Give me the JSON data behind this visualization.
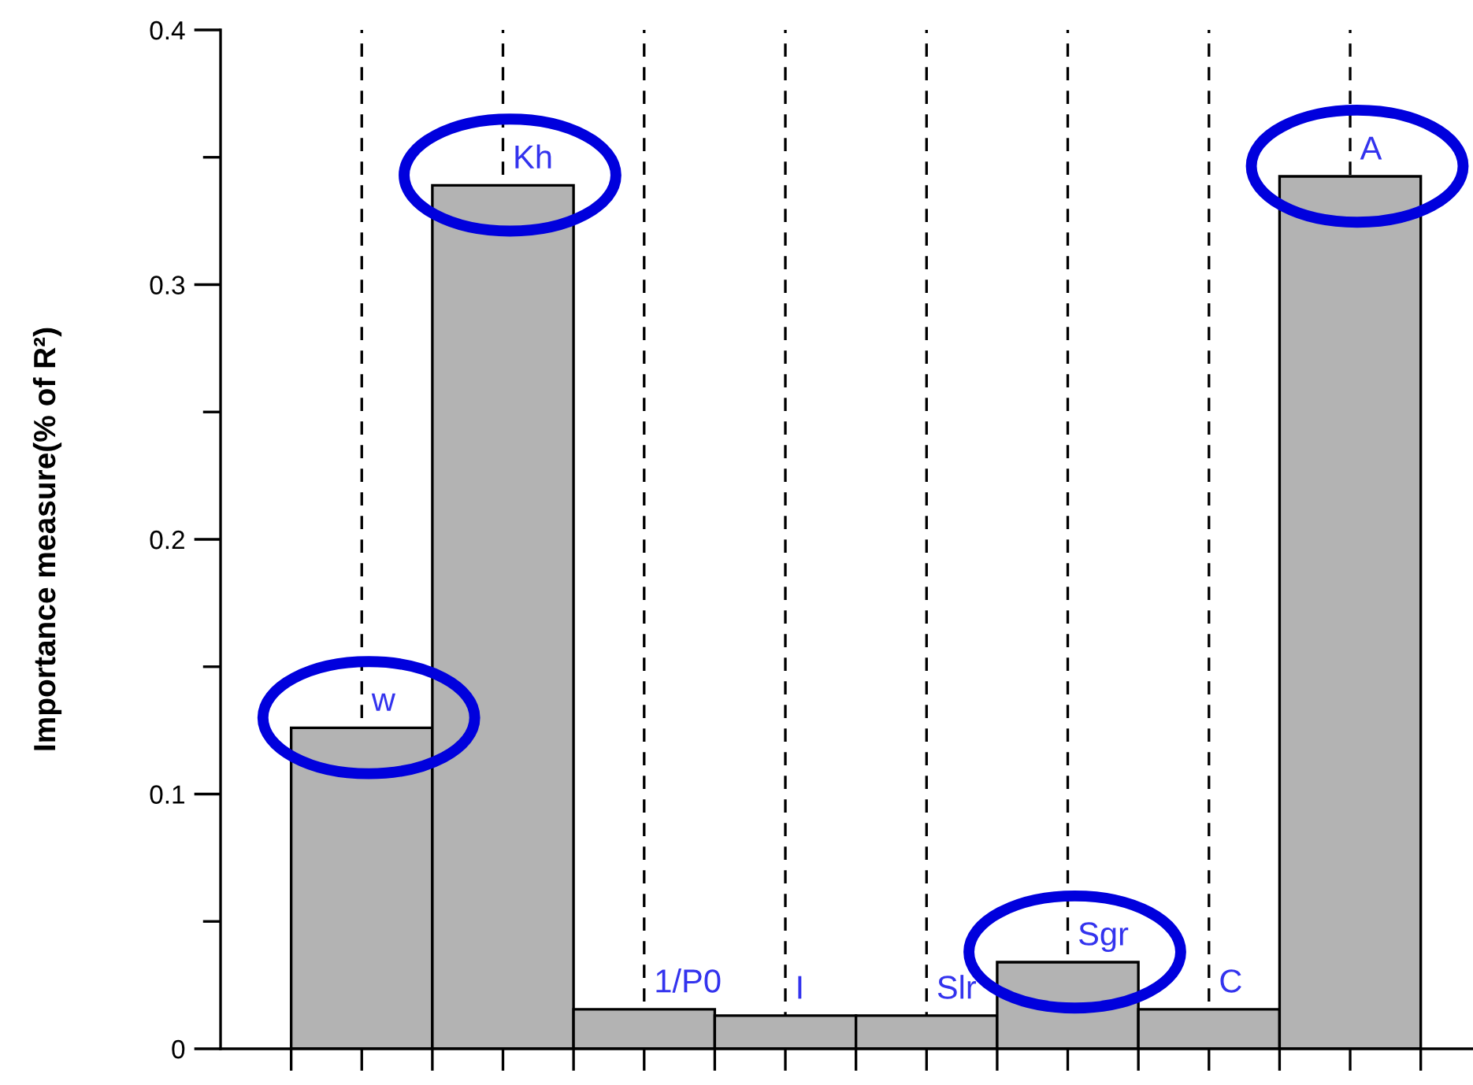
{
  "chart_data": {
    "type": "bar",
    "ylabel": "Importance measure(% of R²)",
    "categories": [
      "w",
      "Kh",
      "1/P0",
      "I",
      "Slr",
      "Sgr",
      "C",
      "A"
    ],
    "values": [
      0.126,
      0.339,
      0.0155,
      0.013,
      0.013,
      0.034,
      0.0155,
      0.3425
    ],
    "color": "#b3b3b3",
    "ylim": [
      0,
      0.4
    ],
    "yticks": [
      0,
      {
        "value": 0.05,
        "label": null
      },
      0.1,
      {
        "value": 0.15,
        "label": null
      },
      0.2,
      {
        "value": 0.25,
        "label": null
      },
      0.3,
      {
        "value": 0.35,
        "label": null
      },
      0.4
    ],
    "grid": "x",
    "tick_labels": "y"
  }
}
